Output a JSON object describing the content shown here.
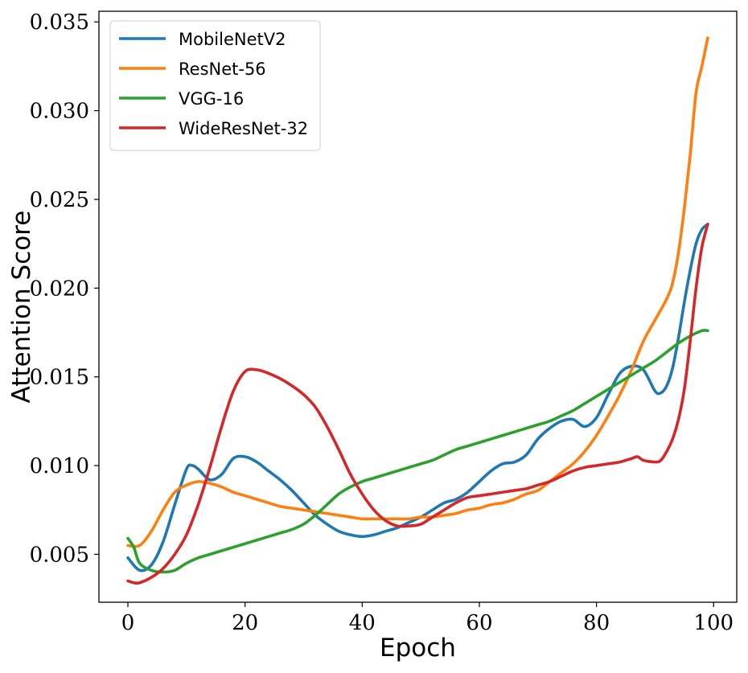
{
  "chart_data": {
    "type": "line",
    "title": "",
    "xlabel": "Epoch",
    "ylabel": "Attention Score",
    "xlim": [
      -4.95,
      103.95
    ],
    "ylim": [
      0.0023,
      0.0356
    ],
    "xticks": [
      0,
      20,
      40,
      60,
      80,
      100
    ],
    "xtick_labels": [
      "0",
      "20",
      "40",
      "60",
      "80",
      "100"
    ],
    "yticks": [
      0.005,
      0.01,
      0.015,
      0.02,
      0.025,
      0.03,
      0.035
    ],
    "ytick_labels": [
      "0.005",
      "0.010",
      "0.015",
      "0.020",
      "0.025",
      "0.030",
      "0.035"
    ],
    "grid": false,
    "legend_position": "upper-left",
    "series": [
      {
        "name": "MobileNetV2",
        "color": "#1f77b4",
        "points": [
          [
            0,
            0.0048
          ],
          [
            2,
            0.0041
          ],
          [
            4,
            0.0044
          ],
          [
            6,
            0.0057
          ],
          [
            8,
            0.0078
          ],
          [
            10,
            0.0098
          ],
          [
            11,
            0.01
          ],
          [
            12,
            0.0098
          ],
          [
            14,
            0.0092
          ],
          [
            16,
            0.0095
          ],
          [
            18,
            0.0104
          ],
          [
            20,
            0.0105
          ],
          [
            22,
            0.0102
          ],
          [
            24,
            0.0097
          ],
          [
            26,
            0.0092
          ],
          [
            28,
            0.0086
          ],
          [
            30,
            0.0079
          ],
          [
            32,
            0.0072
          ],
          [
            34,
            0.0067
          ],
          [
            36,
            0.0063
          ],
          [
            38,
            0.0061
          ],
          [
            40,
            0.006
          ],
          [
            42,
            0.0061
          ],
          [
            44,
            0.0063
          ],
          [
            46,
            0.0065
          ],
          [
            48,
            0.0068
          ],
          [
            50,
            0.0071
          ],
          [
            52,
            0.0075
          ],
          [
            54,
            0.0079
          ],
          [
            56,
            0.0081
          ],
          [
            58,
            0.0085
          ],
          [
            60,
            0.0091
          ],
          [
            62,
            0.0097
          ],
          [
            64,
            0.0101
          ],
          [
            66,
            0.0102
          ],
          [
            68,
            0.0106
          ],
          [
            70,
            0.0115
          ],
          [
            72,
            0.0121
          ],
          [
            74,
            0.0125
          ],
          [
            76,
            0.0126
          ],
          [
            78,
            0.0122
          ],
          [
            80,
            0.0127
          ],
          [
            82,
            0.014
          ],
          [
            84,
            0.0152
          ],
          [
            86,
            0.0156
          ],
          [
            88,
            0.0154
          ],
          [
            90,
            0.0142
          ],
          [
            91,
            0.0141
          ],
          [
            92,
            0.0145
          ],
          [
            93,
            0.0155
          ],
          [
            94,
            0.0172
          ],
          [
            95,
            0.0192
          ],
          [
            96,
            0.021
          ],
          [
            97,
            0.0225
          ],
          [
            98,
            0.0233
          ],
          [
            99,
            0.0236
          ]
        ]
      },
      {
        "name": "ResNet-56",
        "color": "#ff7f0e",
        "points": [
          [
            0,
            0.0055
          ],
          [
            2,
            0.0055
          ],
          [
            4,
            0.0063
          ],
          [
            6,
            0.0075
          ],
          [
            8,
            0.0085
          ],
          [
            10,
            0.0089
          ],
          [
            12,
            0.0091
          ],
          [
            14,
            0.009
          ],
          [
            16,
            0.0088
          ],
          [
            18,
            0.0085
          ],
          [
            20,
            0.0083
          ],
          [
            22,
            0.0081
          ],
          [
            24,
            0.0079
          ],
          [
            26,
            0.0077
          ],
          [
            28,
            0.0076
          ],
          [
            30,
            0.0075
          ],
          [
            32,
            0.0074
          ],
          [
            34,
            0.0073
          ],
          [
            36,
            0.0072
          ],
          [
            38,
            0.0071
          ],
          [
            40,
            0.007
          ],
          [
            42,
            0.007
          ],
          [
            44,
            0.007
          ],
          [
            46,
            0.007
          ],
          [
            48,
            0.007
          ],
          [
            50,
            0.0071
          ],
          [
            52,
            0.0071
          ],
          [
            54,
            0.0072
          ],
          [
            56,
            0.0073
          ],
          [
            58,
            0.0075
          ],
          [
            60,
            0.0076
          ],
          [
            62,
            0.0078
          ],
          [
            64,
            0.0079
          ],
          [
            66,
            0.0081
          ],
          [
            68,
            0.0084
          ],
          [
            70,
            0.0086
          ],
          [
            72,
            0.0091
          ],
          [
            74,
            0.0096
          ],
          [
            76,
            0.0101
          ],
          [
            78,
            0.0108
          ],
          [
            80,
            0.0117
          ],
          [
            82,
            0.0128
          ],
          [
            84,
            0.014
          ],
          [
            86,
            0.0154
          ],
          [
            88,
            0.017
          ],
          [
            90,
            0.0182
          ],
          [
            92,
            0.0194
          ],
          [
            93,
            0.0203
          ],
          [
            94,
            0.022
          ],
          [
            95,
            0.0245
          ],
          [
            96,
            0.0275
          ],
          [
            97,
            0.031
          ],
          [
            98,
            0.0325
          ],
          [
            99,
            0.0341
          ]
        ]
      },
      {
        "name": "VGG-16",
        "color": "#2ca02c",
        "points": [
          [
            0,
            0.0059
          ],
          [
            1,
            0.0054
          ],
          [
            2,
            0.0045
          ],
          [
            4,
            0.0041
          ],
          [
            6,
            0.004
          ],
          [
            8,
            0.0041
          ],
          [
            10,
            0.0045
          ],
          [
            12,
            0.0048
          ],
          [
            14,
            0.005
          ],
          [
            16,
            0.0052
          ],
          [
            18,
            0.0054
          ],
          [
            20,
            0.0056
          ],
          [
            22,
            0.0058
          ],
          [
            24,
            0.006
          ],
          [
            26,
            0.0062
          ],
          [
            28,
            0.0064
          ],
          [
            30,
            0.0067
          ],
          [
            32,
            0.0072
          ],
          [
            34,
            0.0078
          ],
          [
            36,
            0.0084
          ],
          [
            38,
            0.0088
          ],
          [
            40,
            0.0091
          ],
          [
            42,
            0.0093
          ],
          [
            44,
            0.0095
          ],
          [
            46,
            0.0097
          ],
          [
            48,
            0.0099
          ],
          [
            50,
            0.0101
          ],
          [
            52,
            0.0103
          ],
          [
            54,
            0.0106
          ],
          [
            56,
            0.0109
          ],
          [
            58,
            0.0111
          ],
          [
            60,
            0.0113
          ],
          [
            62,
            0.0115
          ],
          [
            64,
            0.0117
          ],
          [
            66,
            0.0119
          ],
          [
            68,
            0.0121
          ],
          [
            70,
            0.0123
          ],
          [
            72,
            0.0125
          ],
          [
            74,
            0.0128
          ],
          [
            76,
            0.0131
          ],
          [
            78,
            0.0135
          ],
          [
            80,
            0.0139
          ],
          [
            82,
            0.0143
          ],
          [
            84,
            0.0147
          ],
          [
            86,
            0.0151
          ],
          [
            88,
            0.0155
          ],
          [
            90,
            0.0159
          ],
          [
            92,
            0.0164
          ],
          [
            94,
            0.0169
          ],
          [
            96,
            0.0173
          ],
          [
            98,
            0.0176
          ],
          [
            99,
            0.0176
          ]
        ]
      },
      {
        "name": "WideResNet-32",
        "color": "#d62728",
        "points": [
          [
            0,
            0.0035
          ],
          [
            1,
            0.0034
          ],
          [
            2,
            0.0034
          ],
          [
            4,
            0.0037
          ],
          [
            6,
            0.0042
          ],
          [
            8,
            0.005
          ],
          [
            10,
            0.0061
          ],
          [
            12,
            0.0078
          ],
          [
            14,
            0.0099
          ],
          [
            16,
            0.0122
          ],
          [
            18,
            0.0142
          ],
          [
            20,
            0.0153
          ],
          [
            22,
            0.0154
          ],
          [
            24,
            0.0152
          ],
          [
            26,
            0.0149
          ],
          [
            28,
            0.0145
          ],
          [
            30,
            0.014
          ],
          [
            32,
            0.0133
          ],
          [
            34,
            0.0122
          ],
          [
            36,
            0.0109
          ],
          [
            38,
            0.0095
          ],
          [
            40,
            0.0084
          ],
          [
            42,
            0.0075
          ],
          [
            44,
            0.0069
          ],
          [
            46,
            0.0066
          ],
          [
            48,
            0.0066
          ],
          [
            50,
            0.0067
          ],
          [
            52,
            0.0071
          ],
          [
            54,
            0.0075
          ],
          [
            56,
            0.0079
          ],
          [
            58,
            0.0082
          ],
          [
            60,
            0.0083
          ],
          [
            62,
            0.0084
          ],
          [
            64,
            0.0085
          ],
          [
            66,
            0.0086
          ],
          [
            68,
            0.0087
          ],
          [
            70,
            0.0089
          ],
          [
            72,
            0.0091
          ],
          [
            74,
            0.0094
          ],
          [
            76,
            0.0097
          ],
          [
            78,
            0.0099
          ],
          [
            80,
            0.01
          ],
          [
            82,
            0.0101
          ],
          [
            84,
            0.0102
          ],
          [
            86,
            0.0104
          ],
          [
            87,
            0.0105
          ],
          [
            88,
            0.0103
          ],
          [
            90,
            0.0102
          ],
          [
            91,
            0.0103
          ],
          [
            92,
            0.0108
          ],
          [
            93,
            0.0115
          ],
          [
            94,
            0.0126
          ],
          [
            95,
            0.0143
          ],
          [
            96,
            0.017
          ],
          [
            97,
            0.02
          ],
          [
            98,
            0.0223
          ],
          [
            99,
            0.0236
          ]
        ]
      }
    ]
  }
}
